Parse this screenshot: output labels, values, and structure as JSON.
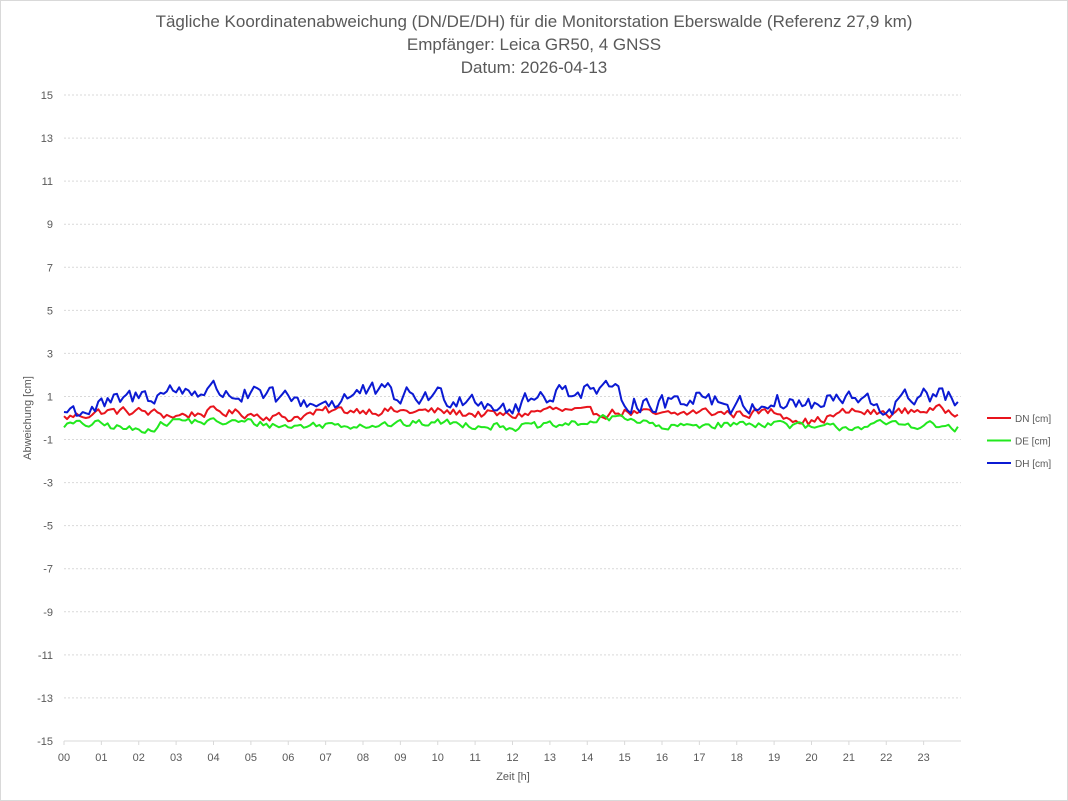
{
  "chart_data": {
    "type": "line",
    "title_lines": [
      "Tägliche Koordinatenabweichung (DN/DE/DH) für die Monitorstation Eberswalde (Referenz 27,9 km)",
      "Empfänger: Leica GR50, 4 GNSS",
      "Datum: 2026-04-13"
    ],
    "xlabel": "Zeit [h]",
    "ylabel": "Abweichung [cm]",
    "x_ticks": [
      "00",
      "01",
      "02",
      "03",
      "04",
      "05",
      "06",
      "07",
      "08",
      "09",
      "10",
      "11",
      "12",
      "13",
      "14",
      "15",
      "16",
      "17",
      "18",
      "19",
      "20",
      "21",
      "22",
      "23"
    ],
    "y_ticks": [
      15,
      13,
      11,
      9,
      7,
      5,
      3,
      1,
      -1,
      -3,
      -5,
      -7,
      -9,
      -11,
      -13,
      -15
    ],
    "xlim": [
      0,
      24
    ],
    "ylim": [
      -15,
      15
    ],
    "grid": "horizontal dotted",
    "legend": "right",
    "sample_interval_min": 5,
    "series": [
      {
        "name": "DN [cm]",
        "color": "#e8141c",
        "keyframes": [
          [
            0,
            0.0
          ],
          [
            1,
            0.3
          ],
          [
            2,
            0.3
          ],
          [
            3,
            0.1
          ],
          [
            4,
            0.3
          ],
          [
            5,
            0.2
          ],
          [
            6,
            0.0
          ],
          [
            7,
            0.3
          ],
          [
            8,
            0.4
          ],
          [
            9,
            0.3
          ],
          [
            10,
            0.3
          ],
          [
            11,
            0.2
          ],
          [
            12,
            0.1
          ],
          [
            13,
            0.4
          ],
          [
            14,
            0.2
          ],
          [
            15,
            0.3
          ],
          [
            16,
            0.1
          ],
          [
            17,
            0.3
          ],
          [
            18,
            0.2
          ],
          [
            19,
            0.3
          ],
          [
            20,
            -0.2
          ],
          [
            21,
            0.3
          ],
          [
            22,
            0.2
          ],
          [
            23,
            0.4
          ],
          [
            23.9,
            0.3
          ]
        ],
        "amplitude": 0.35
      },
      {
        "name": "DE [cm]",
        "color": "#22e81e",
        "keyframes": [
          [
            0,
            -0.3
          ],
          [
            1,
            -0.3
          ],
          [
            2,
            -0.6
          ],
          [
            3,
            -0.1
          ],
          [
            4,
            -0.2
          ],
          [
            5,
            -0.2
          ],
          [
            6,
            -0.4
          ],
          [
            7,
            -0.3
          ],
          [
            8,
            -0.3
          ],
          [
            9,
            -0.3
          ],
          [
            10,
            -0.2
          ],
          [
            11,
            -0.3
          ],
          [
            12,
            -0.4
          ],
          [
            13,
            -0.4
          ],
          [
            14,
            -0.2
          ],
          [
            15,
            0.1
          ],
          [
            16,
            -0.5
          ],
          [
            17,
            -0.3
          ],
          [
            18,
            -0.3
          ],
          [
            19,
            -0.2
          ],
          [
            20,
            -0.5
          ],
          [
            21,
            -0.4
          ],
          [
            22,
            -0.3
          ],
          [
            23,
            -0.3
          ],
          [
            23.9,
            -0.5
          ]
        ],
        "amplitude": 0.3
      },
      {
        "name": "DH [cm]",
        "color": "#0b1ad3",
        "keyframes": [
          [
            0,
            0.3
          ],
          [
            1,
            0.5
          ],
          [
            2,
            1.0
          ],
          [
            3,
            1.3
          ],
          [
            4,
            1.3
          ],
          [
            5,
            1.0
          ],
          [
            6,
            0.8
          ],
          [
            7,
            0.7
          ],
          [
            8,
            1.2
          ],
          [
            9,
            1.0
          ],
          [
            10,
            1.0
          ],
          [
            11,
            1.0
          ],
          [
            12,
            0.4
          ],
          [
            13,
            1.2
          ],
          [
            14,
            1.4
          ],
          [
            15,
            0.9
          ],
          [
            16,
            0.6
          ],
          [
            17,
            1.2
          ],
          [
            18,
            0.5
          ],
          [
            19,
            0.8
          ],
          [
            20,
            0.6
          ],
          [
            21,
            0.9
          ],
          [
            22,
            0.4
          ],
          [
            23,
            1.2
          ],
          [
            23.9,
            0.8
          ]
        ],
        "amplitude": 0.75
      }
    ]
  }
}
